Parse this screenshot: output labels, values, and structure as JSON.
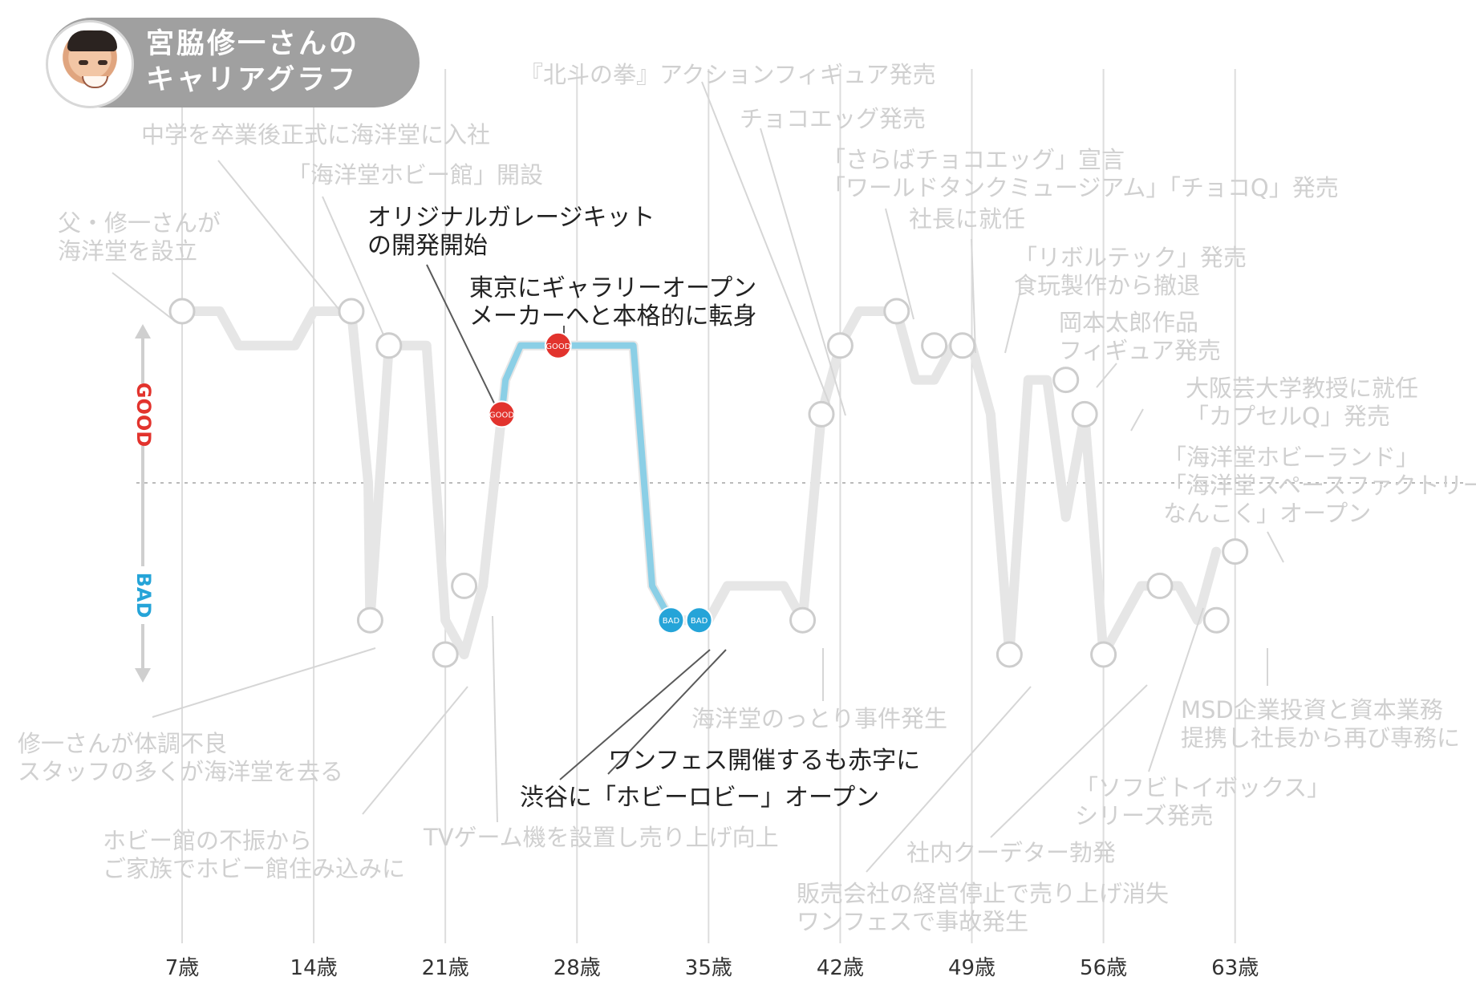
{
  "title": {
    "line1": "宮脇修一さんの",
    "line2": "キャリアグラフ"
  },
  "axis": {
    "good_label": "GOOD",
    "bad_label": "BAD",
    "good_color": "#e2332d",
    "bad_color": "#25a4d8"
  },
  "chart_data": {
    "type": "line",
    "title": "宮脇修一さんのキャリアグラフ",
    "xlabel": "",
    "ylabel": "",
    "xlim": [
      7,
      66
    ],
    "ylim": [
      -5,
      5
    ],
    "grid": true,
    "legend": "none",
    "x_tick_labels": [
      "7歳",
      "14歳",
      "21歳",
      "28歳",
      "35歳",
      "42歳",
      "49歳",
      "56歳",
      "63歳"
    ],
    "x_ticks": [
      7,
      14,
      21,
      28,
      35,
      42,
      49,
      56,
      63
    ],
    "series": [
      {
        "values": [
          [
            7,
            5
          ],
          [
            9,
            5
          ],
          [
            10,
            4
          ],
          [
            13,
            4
          ],
          [
            14,
            5
          ],
          [
            16,
            5
          ],
          [
            16.9,
            0
          ],
          [
            17,
            -4
          ],
          [
            18,
            4
          ],
          [
            19,
            4
          ],
          [
            20,
            4
          ],
          [
            21,
            -4
          ],
          [
            22,
            -5
          ],
          [
            23,
            -3
          ],
          [
            24,
            2
          ],
          [
            24.2,
            3
          ],
          [
            25,
            4
          ],
          [
            27,
            4
          ],
          [
            31,
            4
          ],
          [
            32,
            -3
          ],
          [
            33,
            -4
          ],
          [
            35,
            -4
          ],
          [
            36,
            -3
          ],
          [
            39,
            -3
          ],
          [
            40,
            -4
          ],
          [
            41,
            2
          ],
          [
            42,
            4
          ],
          [
            43,
            5
          ],
          [
            45,
            5
          ],
          [
            46,
            3
          ],
          [
            47,
            3
          ],
          [
            48,
            4
          ],
          [
            49,
            4
          ],
          [
            50,
            2
          ],
          [
            51,
            -5
          ],
          [
            52,
            3
          ],
          [
            53,
            3
          ],
          [
            54,
            -1
          ],
          [
            55,
            2
          ],
          [
            56,
            -5
          ],
          [
            57,
            -4
          ],
          [
            58,
            -3
          ],
          [
            60,
            -3
          ],
          [
            61,
            -4
          ],
          [
            62,
            -2
          ]
        ]
      }
    ],
    "highlight": {
      "x": [
        24,
        24.2,
        25,
        27,
        31,
        32,
        33
      ],
      "y": [
        2,
        3,
        4,
        4,
        4,
        -3,
        -4
      ]
    },
    "points": [
      {
        "x": 7,
        "y": 5,
        "style": "plain"
      },
      {
        "x": 16,
        "y": 5,
        "style": "plain"
      },
      {
        "x": 18,
        "y": 4,
        "style": "plain"
      },
      {
        "x": 17,
        "y": -4,
        "style": "plain"
      },
      {
        "x": 21,
        "y": -5,
        "style": "plain"
      },
      {
        "x": 22,
        "y": -3,
        "style": "plain"
      },
      {
        "x": 24,
        "y": 2,
        "style": "good",
        "label": "GOOD"
      },
      {
        "x": 27,
        "y": 4,
        "style": "good",
        "label": "GOOD"
      },
      {
        "x": 33,
        "y": -4,
        "style": "bad",
        "label": "BAD"
      },
      {
        "x": 34.5,
        "y": -4,
        "style": "bad",
        "label": "BAD"
      },
      {
        "x": 40,
        "y": -4,
        "style": "plain"
      },
      {
        "x": 41,
        "y": 2,
        "style": "plain"
      },
      {
        "x": 42,
        "y": 4,
        "style": "plain"
      },
      {
        "x": 45,
        "y": 5,
        "style": "plain"
      },
      {
        "x": 47,
        "y": 4,
        "style": "plain"
      },
      {
        "x": 48.5,
        "y": 4,
        "style": "plain"
      },
      {
        "x": 51,
        "y": -5,
        "style": "plain"
      },
      {
        "x": 54,
        "y": 3,
        "style": "plain"
      },
      {
        "x": 55,
        "y": 2,
        "style": "plain"
      },
      {
        "x": 56,
        "y": -5,
        "style": "plain"
      },
      {
        "x": 59,
        "y": -3,
        "style": "plain"
      },
      {
        "x": 62,
        "y": -4,
        "style": "plain"
      },
      {
        "x": 63,
        "y": -2,
        "style": "plain"
      }
    ],
    "annotations": [
      {
        "lines": [
          "父・修一さんが",
          "海洋堂を設立"
        ],
        "style": "faded",
        "anchor": "start"
      },
      {
        "lines": [
          "中学を卒業後正式に海洋堂に入社"
        ],
        "style": "faded",
        "anchor": "start"
      },
      {
        "lines": [
          "「海洋堂ホビー館」開設"
        ],
        "style": "faded",
        "anchor": "start"
      },
      {
        "lines": [
          "オリジナルガレージキット",
          "の開発開始"
        ],
        "style": "active",
        "anchor": "start"
      },
      {
        "lines": [
          "東京にギャラリーオープン",
          "メーカーへと本格的に転身"
        ],
        "style": "active",
        "anchor": "start"
      },
      {
        "lines": [
          "『北斗の拳』アクションフィギュア発売"
        ],
        "style": "faded",
        "anchor": "start"
      },
      {
        "lines": [
          "チョコエッグ発売"
        ],
        "style": "faded",
        "anchor": "start"
      },
      {
        "lines": [
          "「さらばチョコエッグ」宣言",
          "「ワールドタンクミュージアム」「チョコQ」発売"
        ],
        "style": "faded",
        "anchor": "start"
      },
      {
        "lines": [
          "社長に就任"
        ],
        "style": "faded",
        "anchor": "start"
      },
      {
        "lines": [
          "「リボルテック」発売",
          "食玩製作から撤退"
        ],
        "style": "faded",
        "anchor": "start"
      },
      {
        "lines": [
          "岡本太郎作品",
          "フィギュア発売"
        ],
        "style": "faded",
        "anchor": "start"
      },
      {
        "lines": [
          "大阪芸大学教授に就任",
          "「カプセルQ」発売"
        ],
        "style": "faded",
        "anchor": "start"
      },
      {
        "lines": [
          "「海洋堂ホビーランド」",
          "「海洋堂スペースファクトリー",
          "なんこく」オープン"
        ],
        "style": "faded",
        "anchor": "start"
      },
      {
        "lines": [
          "修一さんが体調不良",
          "スタッフの多くが海洋堂を去る"
        ],
        "style": "faded",
        "anchor": "start"
      },
      {
        "lines": [
          "ホビー館の不振から",
          "ご家族でホビー館住み込みに"
        ],
        "style": "faded",
        "anchor": "start"
      },
      {
        "lines": [
          "TVゲーム機を設置し売り上げ向上"
        ],
        "style": "faded",
        "anchor": "start"
      },
      {
        "lines": [
          "ワンフェス開催するも赤字に"
        ],
        "style": "active",
        "anchor": "start"
      },
      {
        "lines": [
          "渋谷に「ホビーロビー」オープン"
        ],
        "style": "active",
        "anchor": "start"
      },
      {
        "lines": [
          "海洋堂のっとり事件発生"
        ],
        "style": "faded",
        "anchor": "start"
      },
      {
        "lines": [
          "販売会社の経営停止で売り上げ消失",
          "ワンフェスで事故発生"
        ],
        "style": "faded",
        "anchor": "start"
      },
      {
        "lines": [
          "社内クーデター勃発"
        ],
        "style": "faded",
        "anchor": "start"
      },
      {
        "lines": [
          "「ソフビトイボックス」",
          "シリーズ発売"
        ],
        "style": "faded",
        "anchor": "start"
      },
      {
        "lines": [
          "MSD企業投資と資本業務",
          "提携し社長から再び専務に"
        ],
        "style": "faded",
        "anchor": "start"
      }
    ]
  }
}
